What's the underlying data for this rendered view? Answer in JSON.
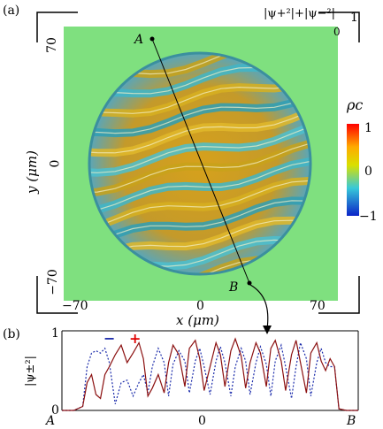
{
  "panel_a": {
    "label": "(a)",
    "axes": {
      "xlabel": "x (μm)",
      "ylabel": "y (μm)",
      "x_ticks": [
        "−70",
        "0",
        "70"
      ],
      "y_ticks": [
        "70",
        "0",
        "−70"
      ]
    },
    "corner_label": "|ψ+²|+|ψ−²|",
    "corner_values": {
      "one": "1",
      "zero": "0"
    },
    "points": {
      "a": "A",
      "b": "B"
    },
    "colorbar": {
      "title": "ρc",
      "max_label": "1",
      "mid_label": "0",
      "min_label": "−1",
      "colors": [
        "#ff0000",
        "#ffaa00",
        "#d9e000",
        "#37c8d9",
        "#0b24c8"
      ]
    },
    "background_color": "#7fe07f"
  },
  "panel_b": {
    "label": "(b)",
    "ylabel": "|ψ±²|",
    "y_ticks": [
      "1",
      "0"
    ],
    "x_ticks": [
      "A",
      "0",
      "B"
    ],
    "legend_minus": "−",
    "legend_plus": "+",
    "minus_color": "#1c2cab",
    "plus_color": "#e00000"
  },
  "chart_data": {
    "type": "line",
    "xlabel": "",
    "ylabel": "|ψ±²|",
    "xlim": [
      -1,
      1
    ],
    "ylim": [
      0,
      1
    ],
    "series": [
      {
        "name": "−",
        "style": "dashed",
        "color": "#1c2cab",
        "x": [
          -1,
          -0.92,
          -0.86,
          -0.83,
          -0.8,
          -0.77,
          -0.74,
          -0.71,
          -0.68,
          -0.64,
          -0.6,
          -0.56,
          -0.52,
          -0.48,
          -0.45,
          -0.42,
          -0.39,
          -0.35,
          -0.31,
          -0.28,
          -0.25,
          -0.21,
          -0.17,
          -0.14,
          -0.1,
          -0.07,
          -0.04,
          0.0,
          0.04,
          0.07,
          0.1,
          0.14,
          0.17,
          0.21,
          0.24,
          0.27,
          0.31,
          0.34,
          0.38,
          0.41,
          0.44,
          0.48,
          0.51,
          0.55,
          0.58,
          0.61,
          0.65,
          0.68,
          0.72,
          0.75,
          0.78,
          0.81,
          0.84,
          0.87,
          0.92,
          1.0
        ],
        "y": [
          0.0,
          0.0,
          0.05,
          0.55,
          0.72,
          0.75,
          0.72,
          0.78,
          0.6,
          0.08,
          0.35,
          0.38,
          0.18,
          0.35,
          0.45,
          0.22,
          0.55,
          0.78,
          0.6,
          0.18,
          0.58,
          0.75,
          0.62,
          0.22,
          0.62,
          0.78,
          0.55,
          0.2,
          0.62,
          0.8,
          0.6,
          0.18,
          0.55,
          0.78,
          0.62,
          0.2,
          0.6,
          0.8,
          0.58,
          0.18,
          0.62,
          0.82,
          0.55,
          0.15,
          0.55,
          0.85,
          0.65,
          0.18,
          0.6,
          0.78,
          0.6,
          0.55,
          0.55,
          0.02,
          0.0,
          0.0
        ]
      },
      {
        "name": "+",
        "style": "solid",
        "color": "#8b1010",
        "x": [
          -1,
          -0.92,
          -0.86,
          -0.83,
          -0.8,
          -0.77,
          -0.74,
          -0.71,
          -0.68,
          -0.64,
          -0.6,
          -0.56,
          -0.52,
          -0.48,
          -0.45,
          -0.42,
          -0.39,
          -0.35,
          -0.31,
          -0.28,
          -0.25,
          -0.21,
          -0.17,
          -0.14,
          -0.1,
          -0.07,
          -0.04,
          0.0,
          0.04,
          0.07,
          0.1,
          0.14,
          0.17,
          0.21,
          0.24,
          0.27,
          0.31,
          0.34,
          0.38,
          0.41,
          0.44,
          0.48,
          0.51,
          0.55,
          0.58,
          0.61,
          0.65,
          0.68,
          0.72,
          0.75,
          0.78,
          0.81,
          0.84,
          0.87,
          0.92,
          1.0
        ],
        "y": [
          0.0,
          0.0,
          0.05,
          0.35,
          0.45,
          0.2,
          0.15,
          0.45,
          0.55,
          0.7,
          0.82,
          0.6,
          0.72,
          0.85,
          0.65,
          0.18,
          0.28,
          0.45,
          0.22,
          0.6,
          0.82,
          0.7,
          0.3,
          0.78,
          0.88,
          0.65,
          0.25,
          0.55,
          0.85,
          0.7,
          0.3,
          0.75,
          0.9,
          0.68,
          0.28,
          0.6,
          0.85,
          0.72,
          0.3,
          0.78,
          0.88,
          0.62,
          0.25,
          0.7,
          0.88,
          0.6,
          0.22,
          0.72,
          0.85,
          0.62,
          0.5,
          0.65,
          0.55,
          0.02,
          0.0,
          0.0
        ]
      }
    ]
  }
}
